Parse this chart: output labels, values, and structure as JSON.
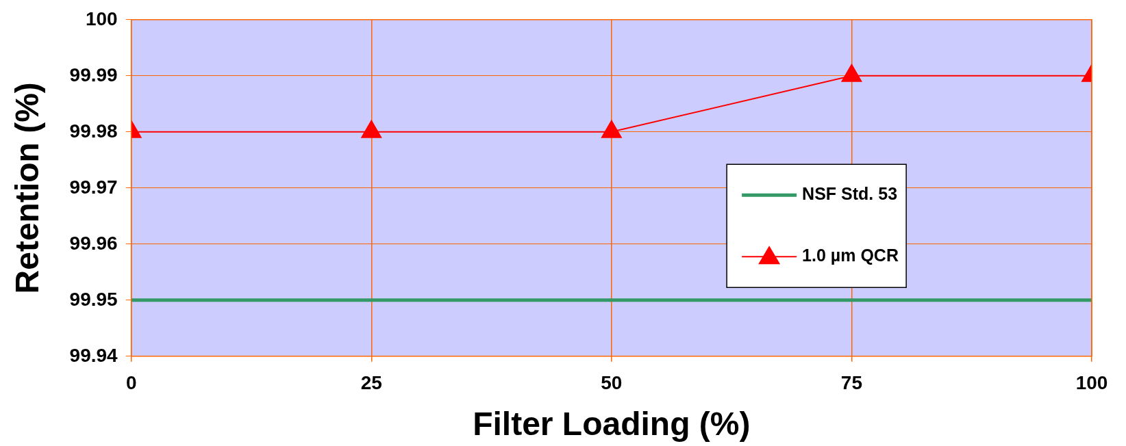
{
  "chart_data": {
    "type": "line",
    "xlabel": "Filter Loading (%)",
    "ylabel": "Retention (%)",
    "xlim": [
      0,
      100
    ],
    "xticks": [
      0,
      25,
      50,
      75,
      100
    ],
    "ylim": [
      99.94,
      100
    ],
    "yticks": [
      99.94,
      99.95,
      99.96,
      99.97,
      99.98,
      99.99,
      100
    ],
    "grid": true,
    "legend": "right",
    "series": [
      {
        "name": "NSF Std. 53",
        "color": "#339966",
        "x": [
          0,
          100
        ],
        "values": [
          99.95,
          99.95
        ],
        "marker": "none"
      },
      {
        "name": "1.0 µm QCR",
        "color": "#ff0000",
        "x": [
          0,
          25,
          50,
          75,
          100
        ],
        "values": [
          99.98,
          99.98,
          99.98,
          99.99,
          99.99
        ],
        "marker": "triangle"
      }
    ]
  }
}
